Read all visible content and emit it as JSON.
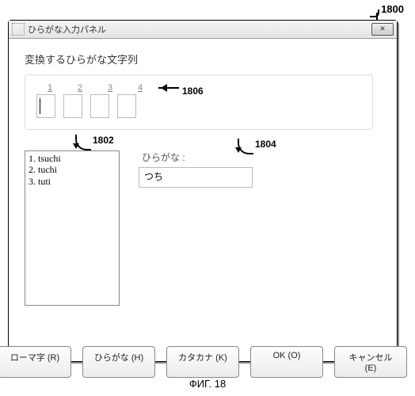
{
  "refs": {
    "r1800": "1800",
    "r1806": "1806",
    "r1802": "1802",
    "r1804": "1804"
  },
  "window": {
    "title": "ひらがな入力パネル",
    "close_glyph": "✕"
  },
  "heading": "変換するひらがな文字列",
  "slot_labels": [
    "1",
    "2",
    "3",
    "4"
  ],
  "candidates": [
    "1. tsuchi",
    "2. tuchi",
    "3. tuti"
  ],
  "hiragana_label": "ひらがな :",
  "hiragana_text": "つち",
  "buttons": {
    "romaji": "ローマ字 (R)",
    "hiragana": "ひらがな (H)",
    "katakana": "カタカナ (K)",
    "ok": "OK (O)",
    "cancel": "キャンセル (E)"
  },
  "caption": "ФИГ. 18",
  "colors": {
    "border": "#000000",
    "panel_border": "#dddddd",
    "field_border": "#bbbbbb",
    "listbox_border": "#888888",
    "bg": "#ffffff"
  }
}
